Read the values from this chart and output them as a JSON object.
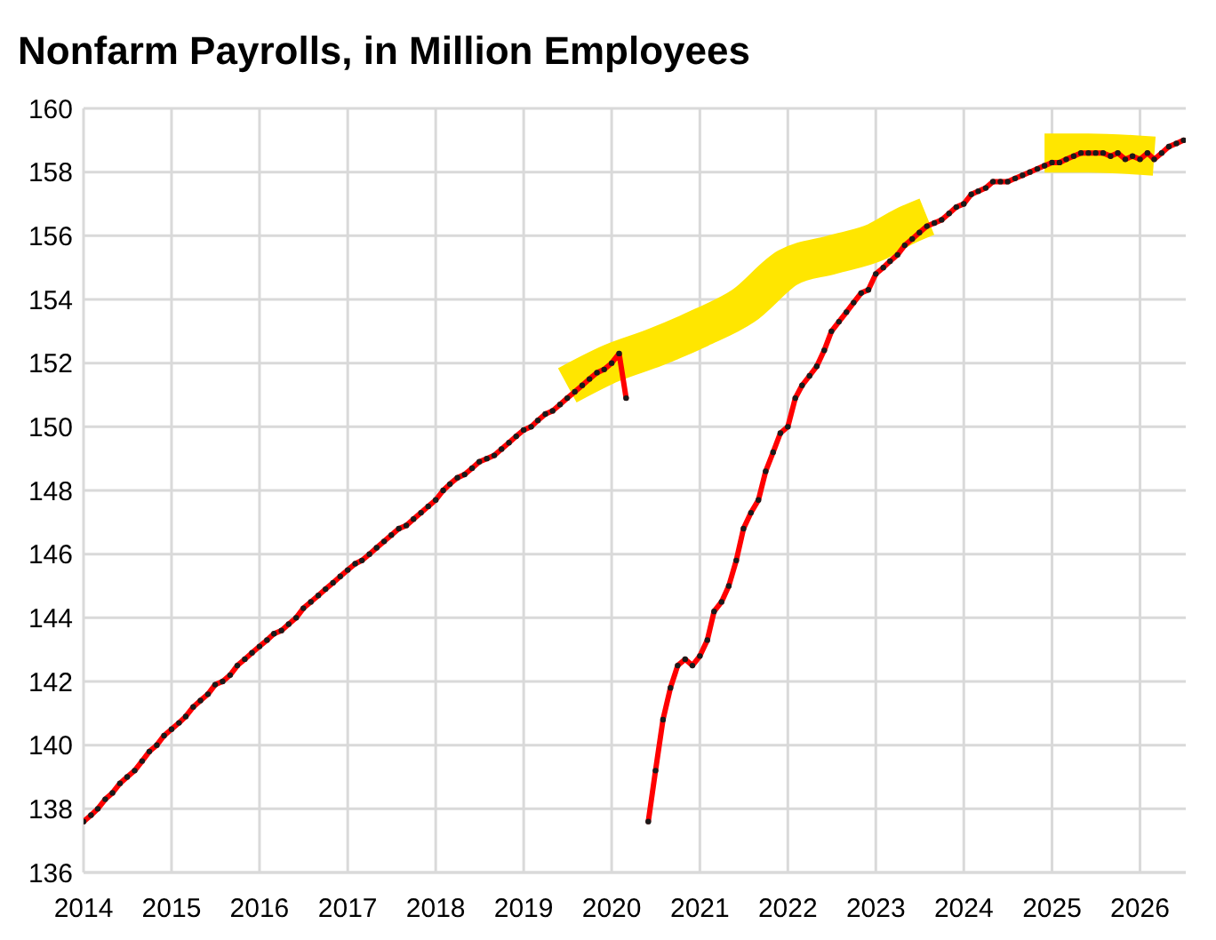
{
  "chart_data": {
    "type": "line",
    "title": "Nonfarm Payrolls, in Million Employees",
    "xlim": [
      "2014-01-01",
      "2026-07-10"
    ],
    "xticks": [
      "2014",
      "2015",
      "2016",
      "2017",
      "2018",
      "2019",
      "2020",
      "2021",
      "2022",
      "2023",
      "2024",
      "2025",
      "2026"
    ],
    "ylim": [
      136,
      160
    ],
    "yticks": [
      136,
      138,
      140,
      142,
      144,
      146,
      148,
      150,
      152,
      154,
      156,
      158,
      160
    ],
    "grid": true,
    "line_style": "solid",
    "series": [
      {
        "color": "#ffe600",
        "marker": "none",
        "x": [
          "2019-07",
          "2020-01",
          "2020-07",
          "2021-01",
          "2021-07",
          "2022-01",
          "2022-07",
          "2023-01",
          "2023-05",
          "2023-08"
        ],
        "values": [
          151.3,
          152.0,
          152.5,
          153.1,
          153.8,
          155.0,
          155.4,
          155.8,
          156.3,
          156.6
        ]
      },
      {
        "color": "#ffe600",
        "marker": "none",
        "x": [
          "2024-12",
          "2025-06",
          "2026-03"
        ],
        "values": [
          158.6,
          158.6,
          158.5
        ]
      },
      {
        "color": "#ff0000",
        "marker": "circle",
        "x": [
          "2014-01",
          "2014-02",
          "2014-03",
          "2014-04",
          "2014-05",
          "2014-06",
          "2014-07",
          "2014-08",
          "2014-09",
          "2014-10",
          "2014-11",
          "2014-12",
          "2015-01",
          "2015-02",
          "2015-03",
          "2015-04",
          "2015-05",
          "2015-06",
          "2015-07",
          "2015-08",
          "2015-09",
          "2015-10",
          "2015-11",
          "2015-12",
          "2016-01",
          "2016-02",
          "2016-03",
          "2016-04",
          "2016-05",
          "2016-06",
          "2016-07",
          "2016-08",
          "2016-09",
          "2016-10",
          "2016-11",
          "2016-12",
          "2017-01",
          "2017-02",
          "2017-03",
          "2017-04",
          "2017-05",
          "2017-06",
          "2017-07",
          "2017-08",
          "2017-09",
          "2017-10",
          "2017-11",
          "2017-12",
          "2018-01",
          "2018-02",
          "2018-03",
          "2018-04",
          "2018-05",
          "2018-06",
          "2018-07",
          "2018-08",
          "2018-09",
          "2018-10",
          "2018-11",
          "2018-12",
          "2019-01",
          "2019-02",
          "2019-03",
          "2019-04",
          "2019-05",
          "2019-06",
          "2019-07",
          "2019-08",
          "2019-09",
          "2019-10",
          "2019-11",
          "2019-12",
          "2020-01",
          "2020-02",
          "2020-03",
          "2020-04",
          "2020-05",
          "2020-06",
          "2020-07",
          "2020-08",
          "2020-09",
          "2020-10",
          "2020-11",
          "2020-12",
          "2021-01",
          "2021-02",
          "2021-03",
          "2021-04",
          "2021-05",
          "2021-06",
          "2021-07",
          "2021-08",
          "2021-09",
          "2021-10",
          "2021-11",
          "2021-12",
          "2022-01",
          "2022-02",
          "2022-03",
          "2022-04",
          "2022-05",
          "2022-06",
          "2022-07",
          "2022-08",
          "2022-09",
          "2022-10",
          "2022-11",
          "2022-12",
          "2023-01",
          "2023-02",
          "2023-03",
          "2023-04",
          "2023-05",
          "2023-06",
          "2023-07",
          "2023-08",
          "2023-09",
          "2023-10",
          "2023-11",
          "2023-12",
          "2024-01",
          "2024-02",
          "2024-03",
          "2024-04",
          "2024-05",
          "2024-06",
          "2024-07",
          "2024-08",
          "2024-09",
          "2024-10",
          "2024-11",
          "2024-12",
          "2025-01",
          "2025-02",
          "2025-03",
          "2025-04",
          "2025-05",
          "2025-06",
          "2025-07",
          "2025-08",
          "2025-09",
          "2025-10",
          "2025-11",
          "2025-12",
          "2026-01",
          "2026-02",
          "2026-03",
          "2026-04",
          "2026-05",
          "2026-06",
          "2026-07"
        ],
        "values": [
          137.6,
          137.8,
          138.0,
          138.3,
          138.5,
          138.8,
          139.0,
          139.2,
          139.5,
          139.8,
          140.0,
          140.3,
          140.5,
          140.7,
          140.9,
          141.2,
          141.4,
          141.6,
          141.9,
          142.0,
          142.2,
          142.5,
          142.7,
          142.9,
          143.1,
          143.3,
          143.5,
          143.6,
          143.8,
          144.0,
          144.3,
          144.5,
          144.7,
          144.9,
          145.1,
          145.3,
          145.5,
          145.7,
          145.8,
          146.0,
          146.2,
          146.4,
          146.6,
          146.8,
          146.9,
          147.1,
          147.3,
          147.5,
          147.7,
          148.0,
          148.2,
          148.4,
          148.5,
          148.7,
          148.9,
          149.0,
          149.1,
          149.3,
          149.5,
          149.7,
          149.9,
          150.0,
          150.2,
          150.4,
          150.5,
          150.7,
          150.9,
          151.1,
          151.3,
          151.5,
          151.7,
          151.8,
          152.0,
          152.3,
          150.9,
          null,
          null,
          137.6,
          139.2,
          140.8,
          141.8,
          142.5,
          142.7,
          142.5,
          142.8,
          143.3,
          144.2,
          144.5,
          145.0,
          145.8,
          146.8,
          147.3,
          147.7,
          148.6,
          149.2,
          149.8,
          150.0,
          150.9,
          151.3,
          151.6,
          151.9,
          152.4,
          153.0,
          153.3,
          153.6,
          153.9,
          154.2,
          154.3,
          154.8,
          155.0,
          155.2,
          155.4,
          155.7,
          155.9,
          156.1,
          156.3,
          156.4,
          156.5,
          156.7,
          156.9,
          157.0,
          157.3,
          157.4,
          157.5,
          157.7,
          157.7,
          157.7,
          157.8,
          157.9,
          158.0,
          158.1,
          158.2,
          158.3,
          158.3,
          158.4,
          158.5,
          158.6,
          158.6,
          158.6,
          158.6,
          158.5,
          158.6,
          158.4,
          158.5,
          158.4,
          158.6,
          158.4,
          158.6,
          158.8,
          158.9,
          159.0
        ]
      }
    ]
  }
}
